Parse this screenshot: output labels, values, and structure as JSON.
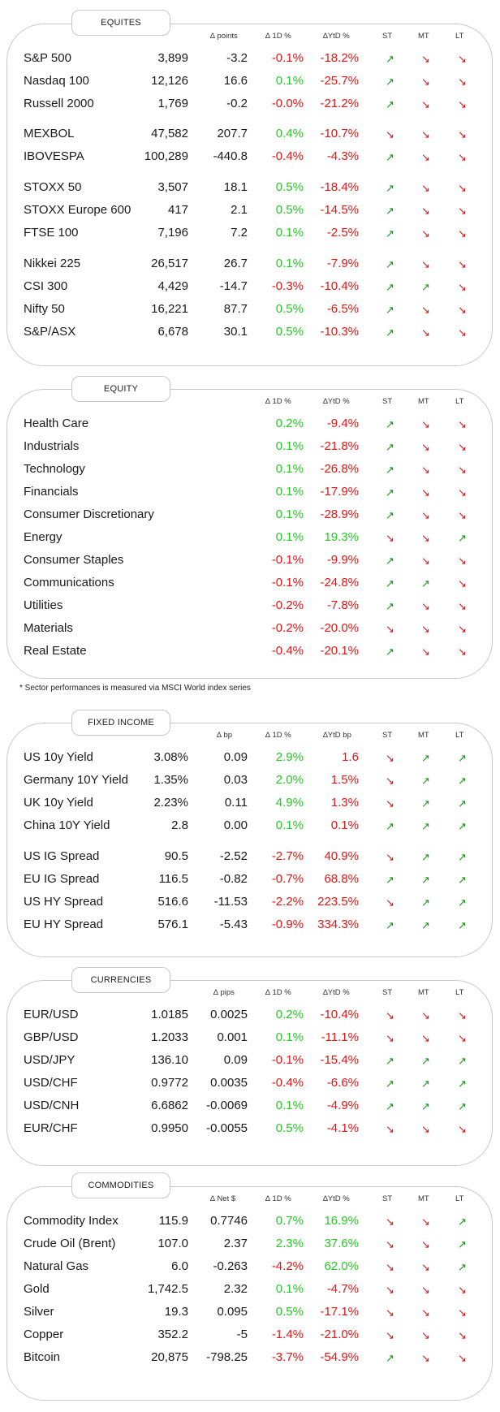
{
  "headers": {
    "points": "∆ points",
    "bp": "∆ bp",
    "pips": "∆ pips",
    "net": "∆ Net $",
    "d1": "∆ 1D %",
    "ytd": "∆YtD %",
    "ytd_bp": "∆YtD bp",
    "st": "ST",
    "mt": "MT",
    "lt": "LT"
  },
  "equities": {
    "title": "EQUITES",
    "rows": [
      {
        "name": "S&P 500",
        "level": "3,899",
        "chg": "-3.2",
        "d1": "-0.1%",
        "ytd": "-18.2%",
        "st": "up",
        "mt": "down",
        "lt": "down"
      },
      {
        "name": "Nasdaq 100",
        "level": "12,126",
        "chg": "16.6",
        "d1": "0.1%",
        "ytd": "-25.7%",
        "st": "up",
        "mt": "down",
        "lt": "down"
      },
      {
        "name": "Russell 2000",
        "level": "1,769",
        "chg": "-0.2",
        "d1": "-0.0%",
        "ytd": "-21.2%",
        "st": "up",
        "mt": "down",
        "lt": "down"
      },
      {
        "name": "MEXBOL",
        "level": "47,582",
        "chg": "207.7",
        "d1": "0.4%",
        "ytd": "-10.7%",
        "st": "down",
        "mt": "down",
        "lt": "down"
      },
      {
        "name": "IBOVESPA",
        "level": "100,289",
        "chg": "-440.8",
        "d1": "-0.4%",
        "ytd": "-4.3%",
        "st": "up",
        "mt": "down",
        "lt": "down"
      },
      {
        "name": "STOXX 50",
        "level": "3,507",
        "chg": "18.1",
        "d1": "0.5%",
        "ytd": "-18.4%",
        "st": "up",
        "mt": "down",
        "lt": "down"
      },
      {
        "name": "STOXX Europe 600",
        "level": "417",
        "chg": "2.1",
        "d1": "0.5%",
        "ytd": "-14.5%",
        "st": "up",
        "mt": "down",
        "lt": "down"
      },
      {
        "name": "FTSE 100",
        "level": "7,196",
        "chg": "7.2",
        "d1": "0.1%",
        "ytd": "-2.5%",
        "st": "up",
        "mt": "down",
        "lt": "down"
      },
      {
        "name": "Nikkei 225",
        "level": "26,517",
        "chg": "26.7",
        "d1": "0.1%",
        "ytd": "-7.9%",
        "st": "up",
        "mt": "down",
        "lt": "down"
      },
      {
        "name": "CSI 300",
        "level": "4,429",
        "chg": "-14.7",
        "d1": "-0.3%",
        "ytd": "-10.4%",
        "st": "up",
        "mt": "up",
        "lt": "down"
      },
      {
        "name": "Nifty  50",
        "level": "16,221",
        "chg": "87.7",
        "d1": "0.5%",
        "ytd": "-6.5%",
        "st": "up",
        "mt": "down",
        "lt": "down"
      },
      {
        "name": "S&P/ASX",
        "level": "6,678",
        "chg": "30.1",
        "d1": "0.5%",
        "ytd": "-10.3%",
        "st": "up",
        "mt": "down",
        "lt": "down"
      }
    ]
  },
  "equity": {
    "title": "EQUITY",
    "note": "* Sector performances is measured via MSCI World index series",
    "rows": [
      {
        "name": "Health Care",
        "d1": "0.2%",
        "ytd": "-9.4%",
        "st": "up",
        "mt": "down",
        "lt": "down"
      },
      {
        "name": "Industrials",
        "d1": "0.1%",
        "ytd": "-21.8%",
        "st": "up",
        "mt": "down",
        "lt": "down"
      },
      {
        "name": "Technology",
        "d1": "0.1%",
        "ytd": "-26.8%",
        "st": "up",
        "mt": "down",
        "lt": "down"
      },
      {
        "name": "Financials",
        "d1": "0.1%",
        "ytd": "-17.9%",
        "st": "up",
        "mt": "down",
        "lt": "down"
      },
      {
        "name": "Consumer Discretionary",
        "d1": "0.1%",
        "ytd": "-28.9%",
        "st": "up",
        "mt": "down",
        "lt": "down"
      },
      {
        "name": "Energy",
        "d1": "0.1%",
        "ytd": "19.3%",
        "st": "down",
        "mt": "down",
        "lt": "up"
      },
      {
        "name": "Consumer Staples",
        "d1": "-0.1%",
        "ytd": "-9.9%",
        "st": "up",
        "mt": "down",
        "lt": "down"
      },
      {
        "name": "Communications",
        "d1": "-0.1%",
        "ytd": "-24.8%",
        "st": "up",
        "mt": "up",
        "lt": "down"
      },
      {
        "name": "Utilities",
        "d1": "-0.2%",
        "ytd": "-7.8%",
        "st": "up",
        "mt": "down",
        "lt": "down"
      },
      {
        "name": "Materials",
        "d1": "-0.2%",
        "ytd": "-20.0%",
        "st": "down",
        "mt": "down",
        "lt": "down"
      },
      {
        "name": "Real Estate",
        "d1": "-0.4%",
        "ytd": "-20.1%",
        "st": "up",
        "mt": "down",
        "lt": "down"
      }
    ]
  },
  "fixed_income": {
    "title": "FIXED INCOME",
    "rows": [
      {
        "name": "US 10y Yield",
        "level": "3.08%",
        "chg": "0.09",
        "d1": "2.9%",
        "ytd": "1.6",
        "st": "down",
        "mt": "up",
        "lt": "up"
      },
      {
        "name": "Germany 10Y Yield",
        "level": "1.35%",
        "chg": "0.03",
        "d1": "2.0%",
        "ytd": "1.5%",
        "st": "down",
        "mt": "up",
        "lt": "up"
      },
      {
        "name": "UK 10y Yield",
        "level": "2.23%",
        "chg": "0.11",
        "d1": "4.9%",
        "ytd": "1.3%",
        "st": "down",
        "mt": "up",
        "lt": "up"
      },
      {
        "name": "China 10Y Yield",
        "level": "2.8",
        "chg": "0.00",
        "d1": "0.1%",
        "ytd": "0.1%",
        "st": "up",
        "mt": "up",
        "lt": "up"
      },
      {
        "name": "US IG Spread",
        "level": "90.5",
        "chg": "-2.52",
        "d1": "-2.7%",
        "ytd": "40.9%",
        "st": "down",
        "mt": "up",
        "lt": "up"
      },
      {
        "name": "EU IG Spread",
        "level": "116.5",
        "chg": "-0.82",
        "d1": "-0.7%",
        "ytd": "68.8%",
        "st": "up",
        "mt": "up",
        "lt": "up"
      },
      {
        "name": "US HY Spread",
        "level": "516.6",
        "chg": "-11.53",
        "d1": "-2.2%",
        "ytd": "223.5%",
        "st": "down",
        "mt": "up",
        "lt": "up"
      },
      {
        "name": "EU HY Spread",
        "level": "576.1",
        "chg": "-5.43",
        "d1": "-0.9%",
        "ytd": "334.3%",
        "st": "up",
        "mt": "up",
        "lt": "up"
      }
    ]
  },
  "currencies": {
    "title": "CURRENCIES",
    "rows": [
      {
        "name": "EUR/USD",
        "level": "1.0185",
        "chg": "0.0025",
        "d1": "0.2%",
        "ytd": "-10.4%",
        "st": "down",
        "mt": "down",
        "lt": "down"
      },
      {
        "name": "GBP/USD",
        "level": "1.2033",
        "chg": "0.001",
        "d1": "0.1%",
        "ytd": "-11.1%",
        "st": "down",
        "mt": "down",
        "lt": "down"
      },
      {
        "name": "USD/JPY",
        "level": "136.10",
        "chg": "0.09",
        "d1": "-0.1%",
        "ytd": "-15.4%",
        "st": "up",
        "mt": "up",
        "lt": "up"
      },
      {
        "name": "USD/CHF",
        "level": "0.9772",
        "chg": "0.0035",
        "d1": "-0.4%",
        "ytd": "-6.6%",
        "st": "up",
        "mt": "up",
        "lt": "up"
      },
      {
        "name": "USD/CNH",
        "level": "6.6862",
        "chg": "-0.0069",
        "d1": "0.1%",
        "ytd": "-4.9%",
        "st": "up",
        "mt": "up",
        "lt": "up"
      },
      {
        "name": "EUR/CHF",
        "level": "0.9950",
        "chg": "-0.0055",
        "d1": "0.5%",
        "ytd": "-4.1%",
        "st": "down",
        "mt": "down",
        "lt": "down"
      }
    ]
  },
  "commodities": {
    "title": "COMMODITIES",
    "rows": [
      {
        "name": "Commodity Index",
        "level": "115.9",
        "chg": "0.7746",
        "d1": "0.7%",
        "ytd": "16.9%",
        "st": "down",
        "mt": "down",
        "lt": "up"
      },
      {
        "name": "Crude Oil (Brent)",
        "level": "107.0",
        "chg": "2.37",
        "d1": "2.3%",
        "ytd": "37.6%",
        "st": "down",
        "mt": "down",
        "lt": "up"
      },
      {
        "name": "Natural Gas",
        "level": "6.0",
        "chg": "-0.263",
        "d1": "-4.2%",
        "ytd": "62.0%",
        "st": "down",
        "mt": "down",
        "lt": "up"
      },
      {
        "name": "Gold",
        "level": "1,742.5",
        "chg": "2.32",
        "d1": "0.1%",
        "ytd": "-4.7%",
        "st": "down",
        "mt": "down",
        "lt": "down"
      },
      {
        "name": "Silver",
        "level": "19.3",
        "chg": "0.095",
        "d1": "0.5%",
        "ytd": "-17.1%",
        "st": "down",
        "mt": "down",
        "lt": "down"
      },
      {
        "name": "Copper",
        "level": "352.2",
        "chg": "-5",
        "d1": "-1.4%",
        "ytd": "-21.0%",
        "st": "down",
        "mt": "down",
        "lt": "down"
      },
      {
        "name": "Bitcoin",
        "level": "20,875",
        "chg": "-798.25",
        "d1": "-3.7%",
        "ytd": "-54.9%",
        "st": "up",
        "mt": "down",
        "lt": "down"
      }
    ]
  }
}
